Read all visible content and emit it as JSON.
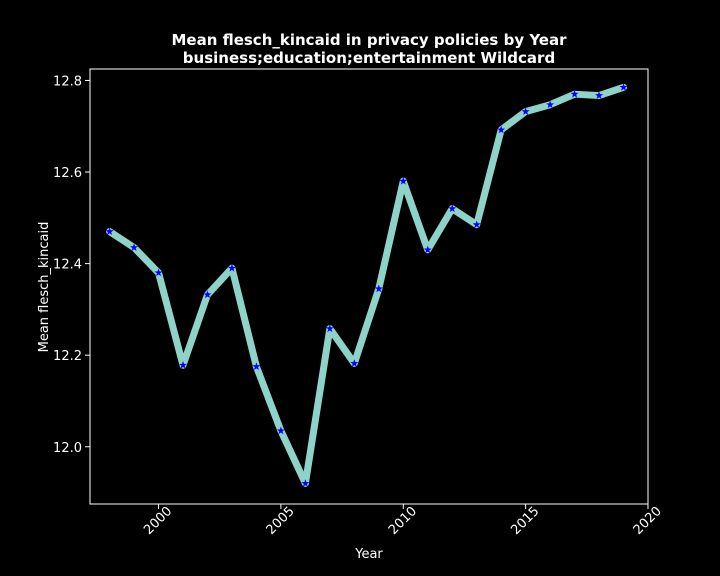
{
  "chart_data": {
    "type": "line",
    "title": "Mean flesch_kincaid in privacy policies by Year",
    "subtitle": "business;education;entertainment Wildcard",
    "xlabel": "Year",
    "ylabel": "Mean flesch_kincaid",
    "xlim": [
      1997.2,
      2020.0
    ],
    "ylim": [
      11.875,
      12.825
    ],
    "xticks": [
      2000,
      2005,
      2010,
      2015,
      2020
    ],
    "yticks": [
      12.0,
      12.2,
      12.4,
      12.6,
      12.8
    ],
    "ytick_labels": [
      "12.0",
      "12.2",
      "12.4",
      "12.6",
      "12.8"
    ],
    "grid": false,
    "line_color": "#8dd3c7",
    "marker_color": "#0000ff",
    "marker": "star",
    "background": "#000000",
    "series": [
      {
        "x": [
          1998,
          1999,
          2000,
          2001,
          2002,
          2003,
          2004,
          2005,
          2006,
          2007,
          2008,
          2009,
          2010,
          2011,
          2012,
          2013,
          2014,
          2015,
          2016,
          2017,
          2018,
          2019
        ],
        "values": [
          12.47,
          12.435,
          12.38,
          12.178,
          12.332,
          12.39,
          12.175,
          12.035,
          11.92,
          12.258,
          12.182,
          12.345,
          12.58,
          12.43,
          12.52,
          12.485,
          12.692,
          12.732,
          12.747,
          12.77,
          12.767,
          12.785
        ]
      }
    ]
  }
}
